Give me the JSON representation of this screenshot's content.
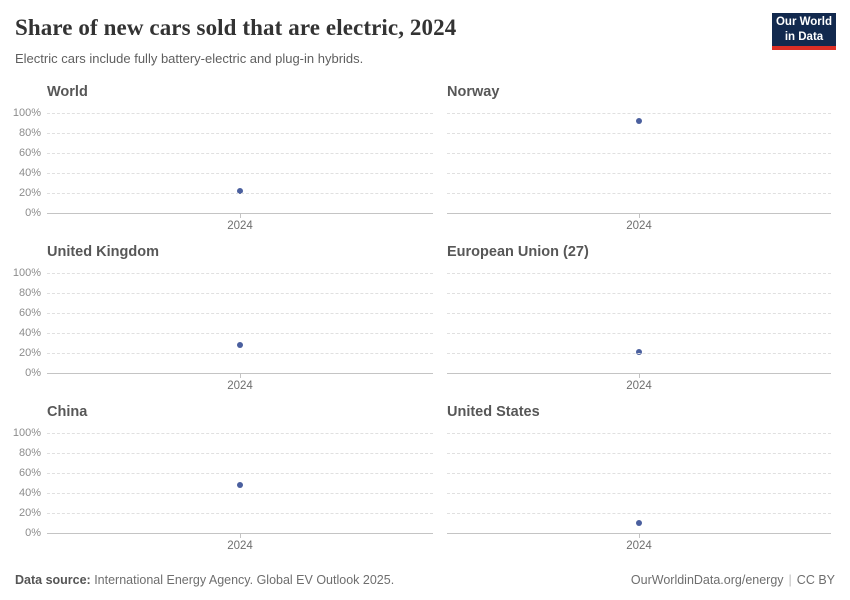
{
  "header": {
    "title": "Share of new cars sold that are electric, 2024",
    "subtitle": "Electric cars include fully battery-electric and plug-in hybrids.",
    "logo": {
      "line1": "Our World",
      "line2": "in Data"
    }
  },
  "chart_data": {
    "type": "scatter",
    "title": "Share of new cars sold that are electric, 2024",
    "x": [
      2024
    ],
    "x_tick_label": "2024",
    "xlabel": "",
    "ylabel": "",
    "ylim": [
      0,
      100
    ],
    "unit": "%",
    "grid": true,
    "y_ticks": [
      {
        "label": "0%",
        "value": 0
      },
      {
        "label": "20%",
        "value": 20
      },
      {
        "label": "40%",
        "value": 40
      },
      {
        "label": "60%",
        "value": 60
      },
      {
        "label": "80%",
        "value": 80
      },
      {
        "label": "100%",
        "value": 100
      }
    ],
    "facets": [
      {
        "name": "World",
        "year": 2024,
        "value": 22
      },
      {
        "name": "Norway",
        "year": 2024,
        "value": 92
      },
      {
        "name": "United Kingdom",
        "year": 2024,
        "value": 28
      },
      {
        "name": "European Union (27)",
        "year": 2024,
        "value": 21
      },
      {
        "name": "China",
        "year": 2024,
        "value": 48
      },
      {
        "name": "United States",
        "year": 2024,
        "value": 10
      }
    ]
  },
  "colors": {
    "dot": "#4a5f9e",
    "logo_bg": "#12294e",
    "logo_accent": "#dc2e25",
    "gridline": "#e0e0e0",
    "axis_line": "#c4c4c4"
  },
  "footer": {
    "source_label": "Data source:",
    "source_text": " International Energy Agency. Global EV Outlook 2025.",
    "link": "OurWorldinData.org/energy",
    "separator": "|",
    "license": "CC BY"
  }
}
